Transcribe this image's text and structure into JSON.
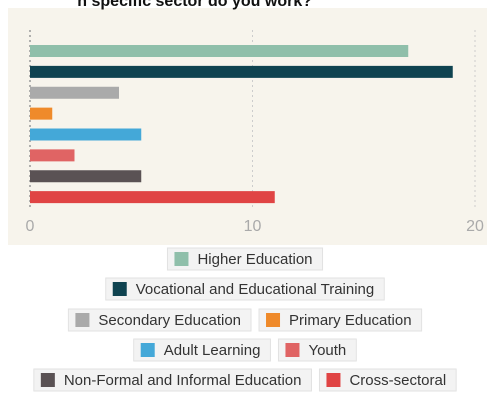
{
  "chart_data": {
    "type": "bar",
    "orientation": "horizontal",
    "title": "n specific sector do you work?",
    "series": [
      {
        "name": "Higher Education",
        "color": "#8fbfaa",
        "values": [
          17
        ]
      },
      {
        "name": "Vocational and Educational Training",
        "color": "#0f4350",
        "values": [
          19
        ]
      },
      {
        "name": "Secondary Education",
        "color": "#aaaaaa",
        "values": [
          4
        ]
      },
      {
        "name": "Primary Education",
        "color": "#ef8a2a",
        "values": [
          1
        ]
      },
      {
        "name": "Adult Learning",
        "color": "#44a8d8",
        "values": [
          5
        ]
      },
      {
        "name": "Youth",
        "color": "#e06464",
        "values": [
          2
        ]
      },
      {
        "name": "Non-Formal and Informal Education",
        "color": "#5a5254",
        "values": [
          5
        ]
      },
      {
        "name": "Cross-sectoral",
        "color": "#e04444",
        "values": [
          11
        ]
      }
    ],
    "xlim": [
      0,
      20
    ],
    "xticks": [
      0,
      10,
      20
    ],
    "grid": true
  }
}
